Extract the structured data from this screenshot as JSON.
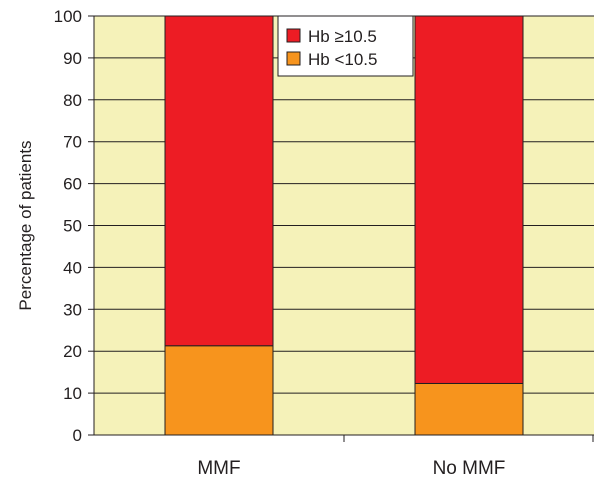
{
  "chart_data": {
    "type": "bar",
    "stacked": true,
    "categories": [
      "MMF",
      "No MMF"
    ],
    "series": [
      {
        "name": "Hb <10.5",
        "values": [
          21.3,
          12.3
        ],
        "color": "#f7941d"
      },
      {
        "name": "Hb ≥10.5",
        "values": [
          78.7,
          87.7
        ],
        "color": "#ed1c24"
      }
    ],
    "legend_order": [
      1,
      0
    ],
    "xlabel": "",
    "ylabel": "Percentage of patients",
    "ylim": [
      0,
      100
    ],
    "yticks": [
      0,
      10,
      20,
      30,
      40,
      50,
      60,
      70,
      80,
      90,
      100
    ],
    "grid": true,
    "legend_position": "top-center",
    "plot_background": "#f5f2b9",
    "gridline_color": "#231f20"
  }
}
